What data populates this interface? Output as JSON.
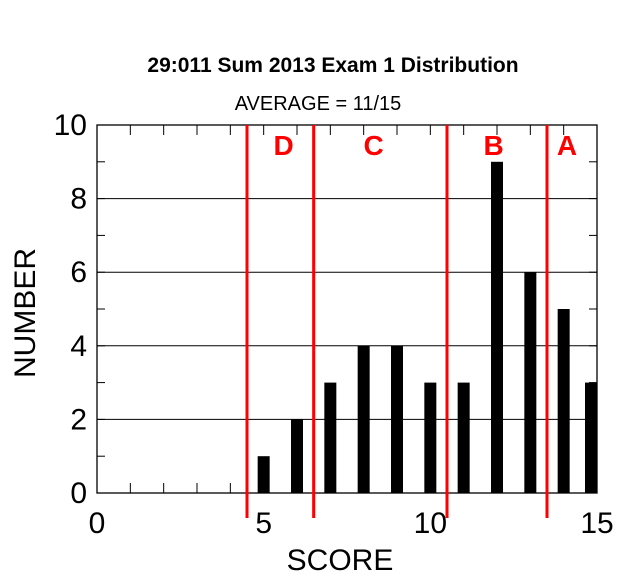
{
  "chart_data": {
    "type": "bar",
    "title": "29:011 Sum 2013 Exam 1 Distribution",
    "subtitle": "AVERAGE = 11/15",
    "xlabel": "SCORE",
    "ylabel": "NUMBER",
    "xlim": [
      0,
      15
    ],
    "ylim": [
      0,
      10
    ],
    "x_ticks": [
      0,
      5,
      10,
      15
    ],
    "y_ticks": [
      0,
      2,
      4,
      6,
      8,
      10
    ],
    "grid": "horizontal",
    "x": [
      5,
      6,
      7,
      8,
      9,
      10,
      11,
      12,
      13,
      14,
      15
    ],
    "values": [
      1,
      2,
      3,
      4,
      4,
      3,
      3,
      9,
      6,
      5,
      3
    ],
    "bar_color": "#000000",
    "cutoffs": [
      4.5,
      6.5,
      10.5,
      13.5
    ],
    "cutoff_color": "#ff0000",
    "grades": [
      {
        "label": "D",
        "x": 5.6
      },
      {
        "label": "C",
        "x": 8.3
      },
      {
        "label": "B",
        "x": 11.9
      },
      {
        "label": "A",
        "x": 14.1
      }
    ]
  }
}
